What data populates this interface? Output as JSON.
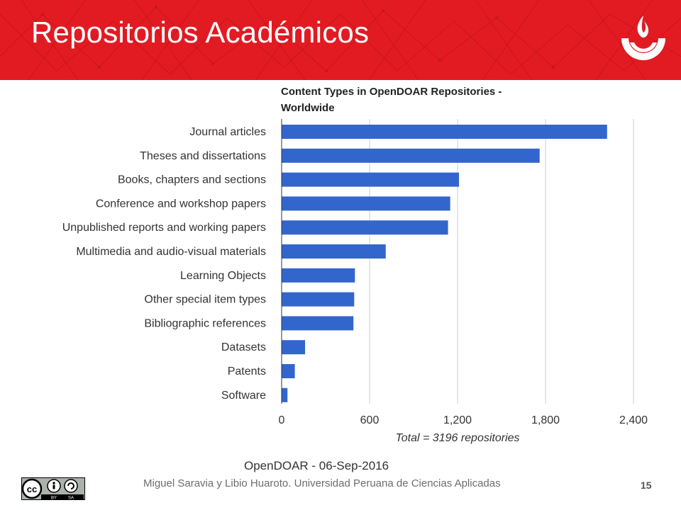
{
  "slide": {
    "title": "Repositorios Académicos",
    "footer": "Miguel Saravia y Libio Huaroto. Universidad Peruana de Ciencias Aplicadas",
    "page_number": "15",
    "license_badge": {
      "by": "BY",
      "sa": "SA"
    }
  },
  "colors": {
    "header": "#e21b23",
    "bar": "#3366cc"
  },
  "chart_data": {
    "type": "bar",
    "orientation": "horizontal",
    "title_line1": "Content Types in OpenDOAR Repositories -",
    "title_line2": "Worldwide",
    "categories": [
      "Journal articles",
      "Theses and dissertations",
      "Books, chapters and sections",
      "Conference and workshop papers",
      "Unpublished reports and working papers",
      "Multimedia and audio-visual materials",
      "Learning Objects",
      "Other special item types",
      "Bibliographic references",
      "Datasets",
      "Patents",
      "Software"
    ],
    "values": [
      2220,
      1760,
      1210,
      1150,
      1135,
      710,
      500,
      495,
      490,
      160,
      90,
      40
    ],
    "xlim": [
      0,
      2400
    ],
    "xticks": [
      "0",
      "600",
      "1,200",
      "1,800",
      "2,400"
    ],
    "xtick_values": [
      0,
      600,
      1200,
      1800,
      2400
    ],
    "xlabel": "Total = 3196 repositories",
    "source": "OpenDOAR - 06-Sep-2016",
    "grid": true
  }
}
